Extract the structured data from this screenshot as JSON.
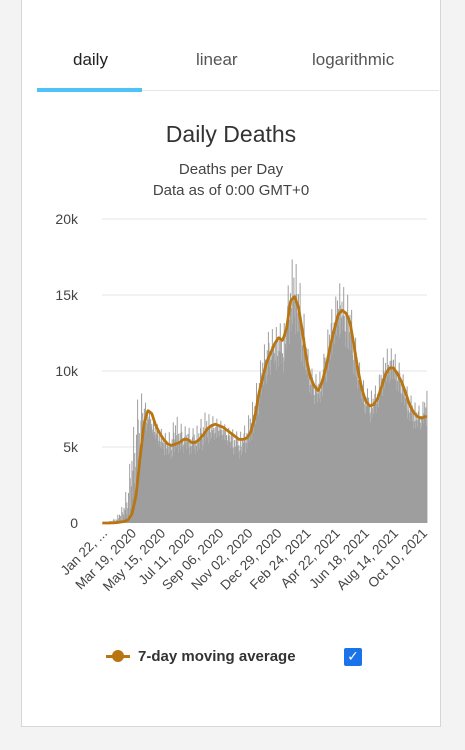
{
  "tabs": [
    {
      "label": "daily",
      "active": true
    },
    {
      "label": "linear",
      "active": false
    },
    {
      "label": "logarithmic",
      "active": false
    }
  ],
  "accent_color": "#4fc3f7",
  "chart_data": {
    "type": "bar",
    "title": "Daily Deaths",
    "subtitle": "Deaths per Day",
    "subtitle2": "Data as of 0:00 GMT+0",
    "xlabel": "",
    "ylabel": "",
    "ylim": [
      0,
      20000
    ],
    "y_ticks": [
      "0",
      "5k",
      "10k",
      "15k",
      "20k"
    ],
    "x_ticks": [
      "Jan 22, ...",
      "Mar 19, 2020",
      "May 15, 2020",
      "Jul 11, 2020",
      "Sep 06, 2020",
      "Nov 02, 2020",
      "Dec 29, 2020",
      "Feb 24, 2021",
      "Apr 22, 2021",
      "Jun 18, 2021",
      "Aug 14, 2021",
      "Oct 10, 2021"
    ],
    "grid": true,
    "bar_color": "#9e9e9e",
    "line_color": "#b87510",
    "series": [
      {
        "name": "Daily Deaths",
        "kind": "bar",
        "values_note": "approximate daily values (week-level resolution)"
      },
      {
        "name": "7-day moving average",
        "kind": "line"
      }
    ],
    "weekly_moving_average": [
      0,
      0,
      10,
      20,
      60,
      100,
      200,
      600,
      1800,
      4200,
      6500,
      7400,
      7200,
      6400,
      5900,
      5500,
      5200,
      5100,
      5200,
      5300,
      5500,
      5500,
      5300,
      5300,
      5500,
      5800,
      6200,
      6400,
      6500,
      6400,
      6300,
      6100,
      5900,
      5700,
      5500,
      5500,
      5600,
      6000,
      7000,
      8500,
      9600,
      10600,
      11200,
      11800,
      12200,
      12000,
      12800,
      14600,
      14900,
      14200,
      12600,
      10800,
      9600,
      9000,
      8700,
      9300,
      10300,
      11600,
      12700,
      13700,
      14000,
      13800,
      13200,
      11700,
      10100,
      8800,
      8000,
      7700,
      7800,
      8200,
      9000,
      9800,
      10200,
      10200,
      9800,
      9300,
      8600,
      7800,
      7300,
      7000,
      6900,
      7000
    ],
    "weekly_daily_peaks": [
      0,
      100,
      200,
      400,
      800,
      1500,
      3000,
      5500,
      7800,
      8700,
      8200,
      7400,
      6900,
      6600,
      6300,
      6000,
      5800,
      6300,
      7200,
      6600,
      6400,
      6300,
      6200,
      6300,
      6600,
      7300,
      7200,
      7100,
      6900,
      6800,
      6600,
      6300,
      6200,
      6100,
      5900,
      6200,
      6800,
      7600,
      8600,
      10300,
      11400,
      12400,
      12900,
      12500,
      13600,
      12300,
      14700,
      17300,
      17400,
      16400,
      14700,
      12100,
      10300,
      9900,
      9600,
      10600,
      12100,
      13900,
      14400,
      15800,
      15700,
      15200,
      14700,
      12800,
      11100,
      9600,
      9000,
      8600,
      8900,
      9300,
      10600,
      11400,
      11600,
      11300,
      10800,
      10100,
      9200,
      8600,
      8000,
      7800,
      7600,
      8700
    ],
    "weekly_daily_troughs": [
      0,
      0,
      0,
      20,
      40,
      60,
      150,
      400,
      1400,
      3500,
      5600,
      6500,
      6000,
      5300,
      4900,
      4500,
      4300,
      4200,
      4300,
      4500,
      4600,
      4600,
      4400,
      4500,
      4600,
      4900,
      5200,
      5300,
      5500,
      5400,
      5300,
      5100,
      4600,
      4400,
      4200,
      4500,
      4700,
      5300,
      6000,
      7400,
      8300,
      9100,
      9800,
      10100,
      10000,
      9800,
      11000,
      12200,
      12500,
      12100,
      10200,
      9200,
      8200,
      7800,
      7600,
      8200,
      9200,
      10300,
      11500,
      12200,
      12200,
      11400,
      10500,
      9300,
      8800,
      7600,
      7000,
      6600,
      6900,
      7400,
      8200,
      8900,
      9300,
      9000,
      8400,
      7900,
      7300,
      6500,
      6200,
      6000,
      6200,
      6400
    ]
  },
  "legend": {
    "label": "7-day moving average",
    "checked": true,
    "checkmark": "✓"
  }
}
